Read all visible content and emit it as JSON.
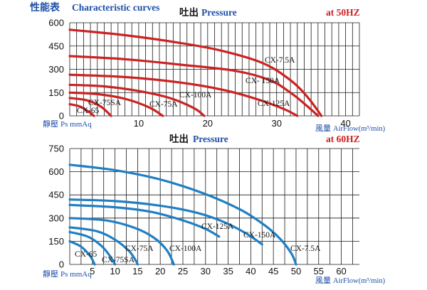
{
  "header": {
    "title_cn": "性能表",
    "title_en": "Characteristic curves"
  },
  "units": {
    "ylabel_cn": "靜壓",
    "ylabel_en": "Ps mmAq",
    "xlabel_cn": "風量",
    "xlabel_en": "AirFlow(m³/min)"
  },
  "chart_data": [
    {
      "type": "line",
      "title_cn": "吐出",
      "title_en": "Pressure",
      "frequency": "at 50HZ",
      "xlim": [
        0,
        42
      ],
      "ylim": [
        0,
        600
      ],
      "x_ticks": [
        10,
        20,
        30,
        40
      ],
      "y_ticks": [
        0,
        150,
        300,
        450,
        600
      ],
      "color": "#cc2222",
      "series": [
        {
          "name": "CX-7.5A",
          "label": "CX-7.5A",
          "x": [
            0,
            8,
            16,
            22,
            28,
            32,
            34.5,
            36.5
          ],
          "y": [
            555,
            520,
            470,
            420,
            340,
            230,
            120,
            0
          ]
        },
        {
          "name": "CX-150A",
          "label": "CX- 150A",
          "x": [
            0,
            8,
            16,
            24,
            29,
            32,
            34.5,
            36
          ],
          "y": [
            385,
            365,
            330,
            290,
            230,
            150,
            60,
            0
          ]
        },
        {
          "name": "CX-125A",
          "label": "CX-125A",
          "x": [
            0,
            8,
            16,
            22,
            27,
            31,
            33
          ],
          "y": [
            265,
            250,
            215,
            170,
            110,
            45,
            0
          ]
        },
        {
          "name": "CX-100A",
          "label": "CX-100A",
          "x": [
            0,
            5,
            10,
            14.5,
            18,
            19.5
          ],
          "y": [
            200,
            190,
            160,
            115,
            50,
            0
          ]
        },
        {
          "name": "CX-75A",
          "label": "CX-75A",
          "x": [
            0,
            4,
            8,
            11.5,
            13.5
          ],
          "y": [
            150,
            140,
            110,
            55,
            0
          ]
        },
        {
          "name": "CX-75SA",
          "label": "CX-75SA",
          "x": [
            0,
            2.5,
            4.5,
            6
          ],
          "y": [
            115,
            100,
            60,
            0
          ]
        },
        {
          "name": "CX-65",
          "label": "CX-65",
          "x": [
            0,
            1.5,
            2.8,
            3.5
          ],
          "y": [
            75,
            60,
            25,
            0
          ]
        }
      ]
    },
    {
      "type": "line",
      "title_cn": "吐出",
      "title_en": "Pressure",
      "frequency": "at 60HZ",
      "xlim": [
        0,
        64
      ],
      "ylim": [
        0,
        750
      ],
      "x_ticks": [
        5,
        10,
        15,
        20,
        25,
        30,
        35,
        40,
        45,
        50,
        55,
        60
      ],
      "y_ticks": [
        0,
        150,
        300,
        450,
        600,
        750
      ],
      "color": "#1f7fc4",
      "series": [
        {
          "name": "CX-7.5A",
          "label": "CX-7.5A",
          "x": [
            0,
            10,
            20,
            30,
            38,
            43,
            46.5,
            49,
            50
          ],
          "y": [
            645,
            610,
            550,
            455,
            350,
            255,
            165,
            70,
            0
          ]
        },
        {
          "name": "CX-150A",
          "label": "CX-150A",
          "x": [
            0,
            10,
            20,
            28,
            34,
            39,
            42.5
          ],
          "y": [
            420,
            410,
            380,
            335,
            275,
            200,
            130
          ]
        },
        {
          "name": "CX-125A",
          "label": "CX-125A",
          "x": [
            0,
            10,
            18,
            25,
            30,
            33
          ],
          "y": [
            385,
            370,
            340,
            285,
            230,
            180
          ]
        },
        {
          "name": "CX-100A",
          "label": "CX-100A",
          "x": [
            0,
            8,
            14,
            18.5,
            21.5,
            23
          ],
          "y": [
            300,
            285,
            240,
            175,
            90,
            0
          ]
        },
        {
          "name": "CX-75A",
          "label": "CX-75A",
          "x": [
            0,
            6,
            10,
            13,
            14.5,
            15
          ],
          "y": [
            240,
            215,
            160,
            90,
            30,
            0
          ]
        },
        {
          "name": "CX-75SA",
          "label": "CX-75SA",
          "x": [
            0,
            4,
            7,
            9,
            10
          ],
          "y": [
            210,
            180,
            120,
            50,
            0
          ]
        },
        {
          "name": "CX-65",
          "label": "CX-65",
          "x": [
            0,
            2.5,
            4.5,
            5.5
          ],
          "y": [
            150,
            115,
            55,
            0
          ]
        }
      ]
    }
  ]
}
